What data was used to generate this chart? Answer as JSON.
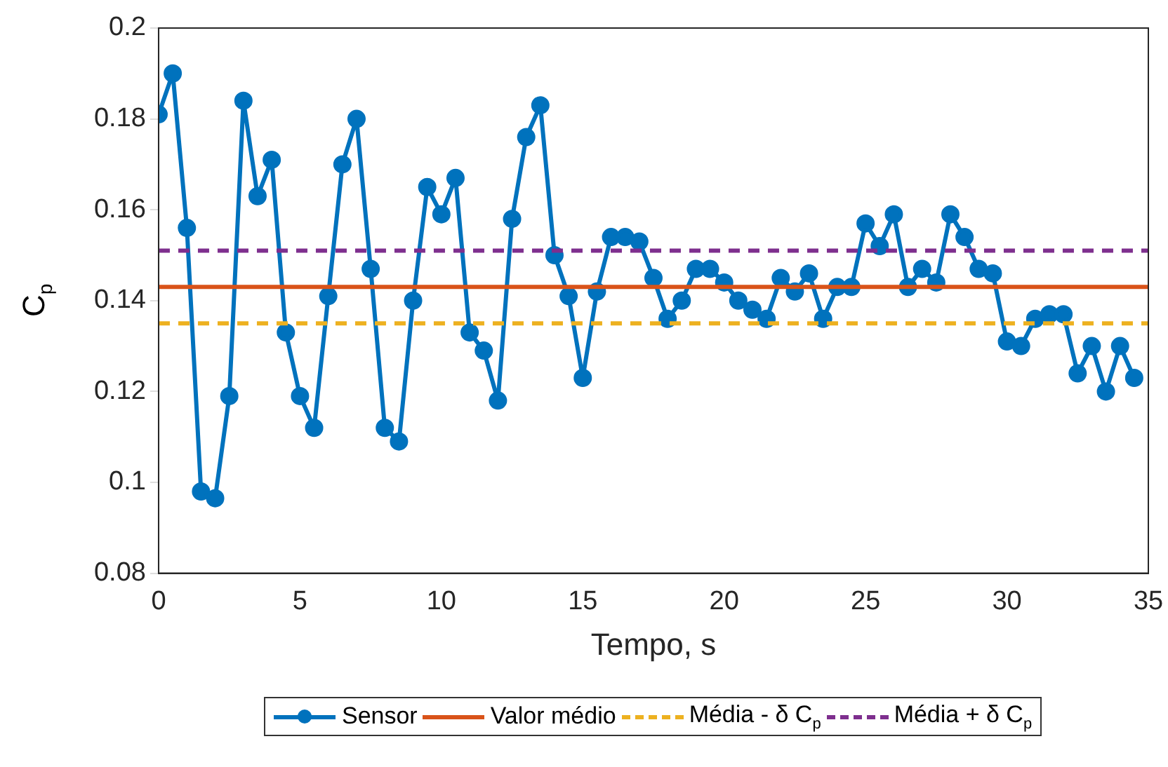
{
  "chart_data": {
    "type": "line",
    "xlabel": "Tempo, s",
    "ylabel": "C$_{p}$",
    "x": [
      0,
      0.5,
      1,
      1.5,
      2,
      2.5,
      3,
      3.5,
      4,
      4.5,
      5,
      5.5,
      6,
      6.5,
      7,
      7.5,
      8,
      8.5,
      9,
      9.5,
      10,
      10.5,
      11,
      11.5,
      12,
      12.5,
      13,
      13.5,
      14,
      14.5,
      15,
      15.5,
      16,
      16.5,
      17,
      17.5,
      18,
      18.5,
      19,
      19.5,
      20,
      20.5,
      21,
      21.5,
      22,
      22.5,
      23,
      23.5,
      24,
      24.5,
      25,
      25.5,
      26,
      26.5,
      27,
      27.5,
      28,
      28.5,
      29,
      29.5,
      30,
      30.5,
      31,
      31.5,
      32,
      32.5,
      33,
      33.5,
      34,
      34.5
    ],
    "series": [
      {
        "name": "Sensor",
        "color": "#0072bd",
        "marker": "circle",
        "line_style": "solid",
        "values": [
          0.181,
          0.19,
          0.156,
          0.098,
          0.0965,
          0.119,
          0.184,
          0.163,
          0.171,
          0.133,
          0.119,
          0.112,
          0.141,
          0.17,
          0.18,
          0.147,
          0.112,
          0.109,
          0.14,
          0.165,
          0.159,
          0.167,
          0.133,
          0.129,
          0.118,
          0.158,
          0.176,
          0.183,
          0.15,
          0.141,
          0.123,
          0.142,
          0.154,
          0.154,
          0.153,
          0.145,
          0.136,
          0.14,
          0.147,
          0.147,
          0.144,
          0.14,
          0.138,
          0.136,
          0.145,
          0.142,
          0.146,
          0.136,
          0.143,
          0.143,
          0.157,
          0.152,
          0.159,
          0.143,
          0.147,
          0.144,
          0.159,
          0.154,
          0.147,
          0.146,
          0.131,
          0.13,
          0.136,
          0.137,
          0.137,
          0.124,
          0.13,
          0.12,
          0.13,
          0.123
        ]
      }
    ],
    "ref_lines": [
      {
        "axis": "y",
        "value": 0.143,
        "label": "Valor médio",
        "color": "#d95319",
        "line_style": "solid"
      },
      {
        "axis": "y",
        "value": 0.135,
        "label": "Média - δ C$_{p}$",
        "color": "#edb120",
        "line_style": "dashed"
      },
      {
        "axis": "y",
        "value": 0.151,
        "label": "Média + δ C$_{p}$",
        "color": "#7e2f8e",
        "line_style": "dashed"
      }
    ],
    "xlim": [
      0,
      35
    ],
    "xticks": [
      0,
      5,
      10,
      15,
      20,
      25,
      30,
      35
    ],
    "ylim": [
      0.08,
      0.2
    ],
    "yticks": [
      0.08,
      0.1,
      0.12,
      0.14,
      0.16,
      0.18,
      0.2
    ],
    "grid": false,
    "legend": "bottom"
  }
}
